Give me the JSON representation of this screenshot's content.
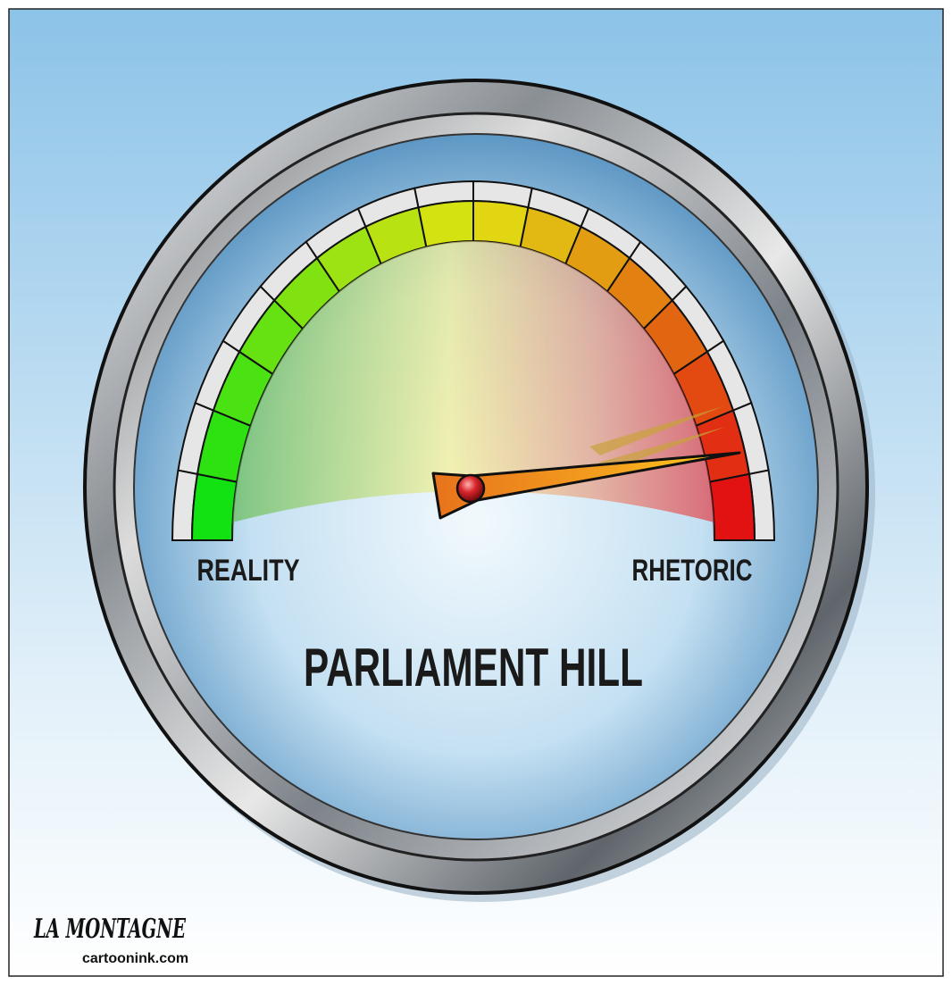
{
  "gauge": {
    "left_label": "REALITY",
    "right_label": "RHETORIC",
    "title": "PARLIAMENT HILL"
  },
  "signature": {
    "name": "LA MONTAGNE",
    "site": "cartoonink.com"
  }
}
